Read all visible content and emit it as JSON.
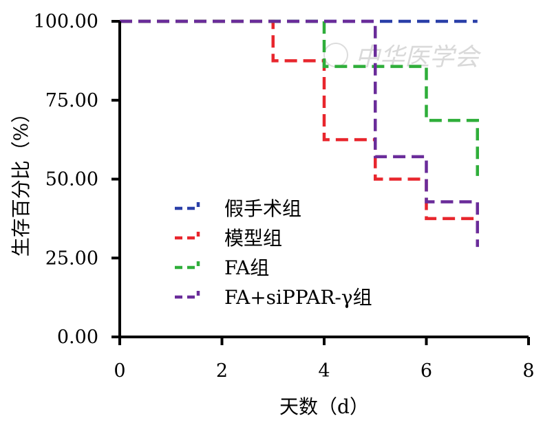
{
  "watermark": "中华医学会",
  "chart_data": {
    "type": "line",
    "subtype": "kaplan-meier-step",
    "xlabel": "天数（d）",
    "ylabel": "生存百分比（%）",
    "xlim": [
      0,
      8
    ],
    "ylim": [
      0,
      100
    ],
    "x_ticks": [
      "0",
      "2",
      "4",
      "6",
      "8"
    ],
    "y_ticks": [
      "0.00",
      "25.00",
      "50.00",
      "75.00",
      "100.00"
    ],
    "grid": false,
    "legend_position": "lower-left",
    "series": [
      {
        "name": "假手术组",
        "color": "#2a3fa8",
        "points": [
          [
            0,
            100
          ],
          [
            7,
            100
          ]
        ]
      },
      {
        "name": "模型组",
        "color": "#e8262d",
        "points": [
          [
            0,
            100
          ],
          [
            3,
            100
          ],
          [
            3,
            87.5
          ],
          [
            4,
            87.5
          ],
          [
            4,
            62.5
          ],
          [
            5,
            62.5
          ],
          [
            5,
            50
          ],
          [
            6,
            50
          ],
          [
            6,
            37.5
          ],
          [
            7,
            37.5
          ],
          [
            7,
            31
          ]
        ]
      },
      {
        "name": "FA组",
        "color": "#2fae3a",
        "points": [
          [
            0,
            100
          ],
          [
            4,
            100
          ],
          [
            4,
            85.7
          ],
          [
            6,
            85.7
          ],
          [
            6,
            68.6
          ],
          [
            7,
            68.6
          ],
          [
            7,
            51
          ]
        ]
      },
      {
        "name": "FA+siPPAR-γ组",
        "color": "#6a2c9a",
        "points": [
          [
            0,
            100
          ],
          [
            5,
            100
          ],
          [
            5,
            85.7
          ],
          [
            5,
            57.1
          ],
          [
            6,
            57.1
          ],
          [
            6,
            42.8
          ],
          [
            7,
            42.8
          ],
          [
            7,
            28.5
          ]
        ]
      }
    ]
  }
}
